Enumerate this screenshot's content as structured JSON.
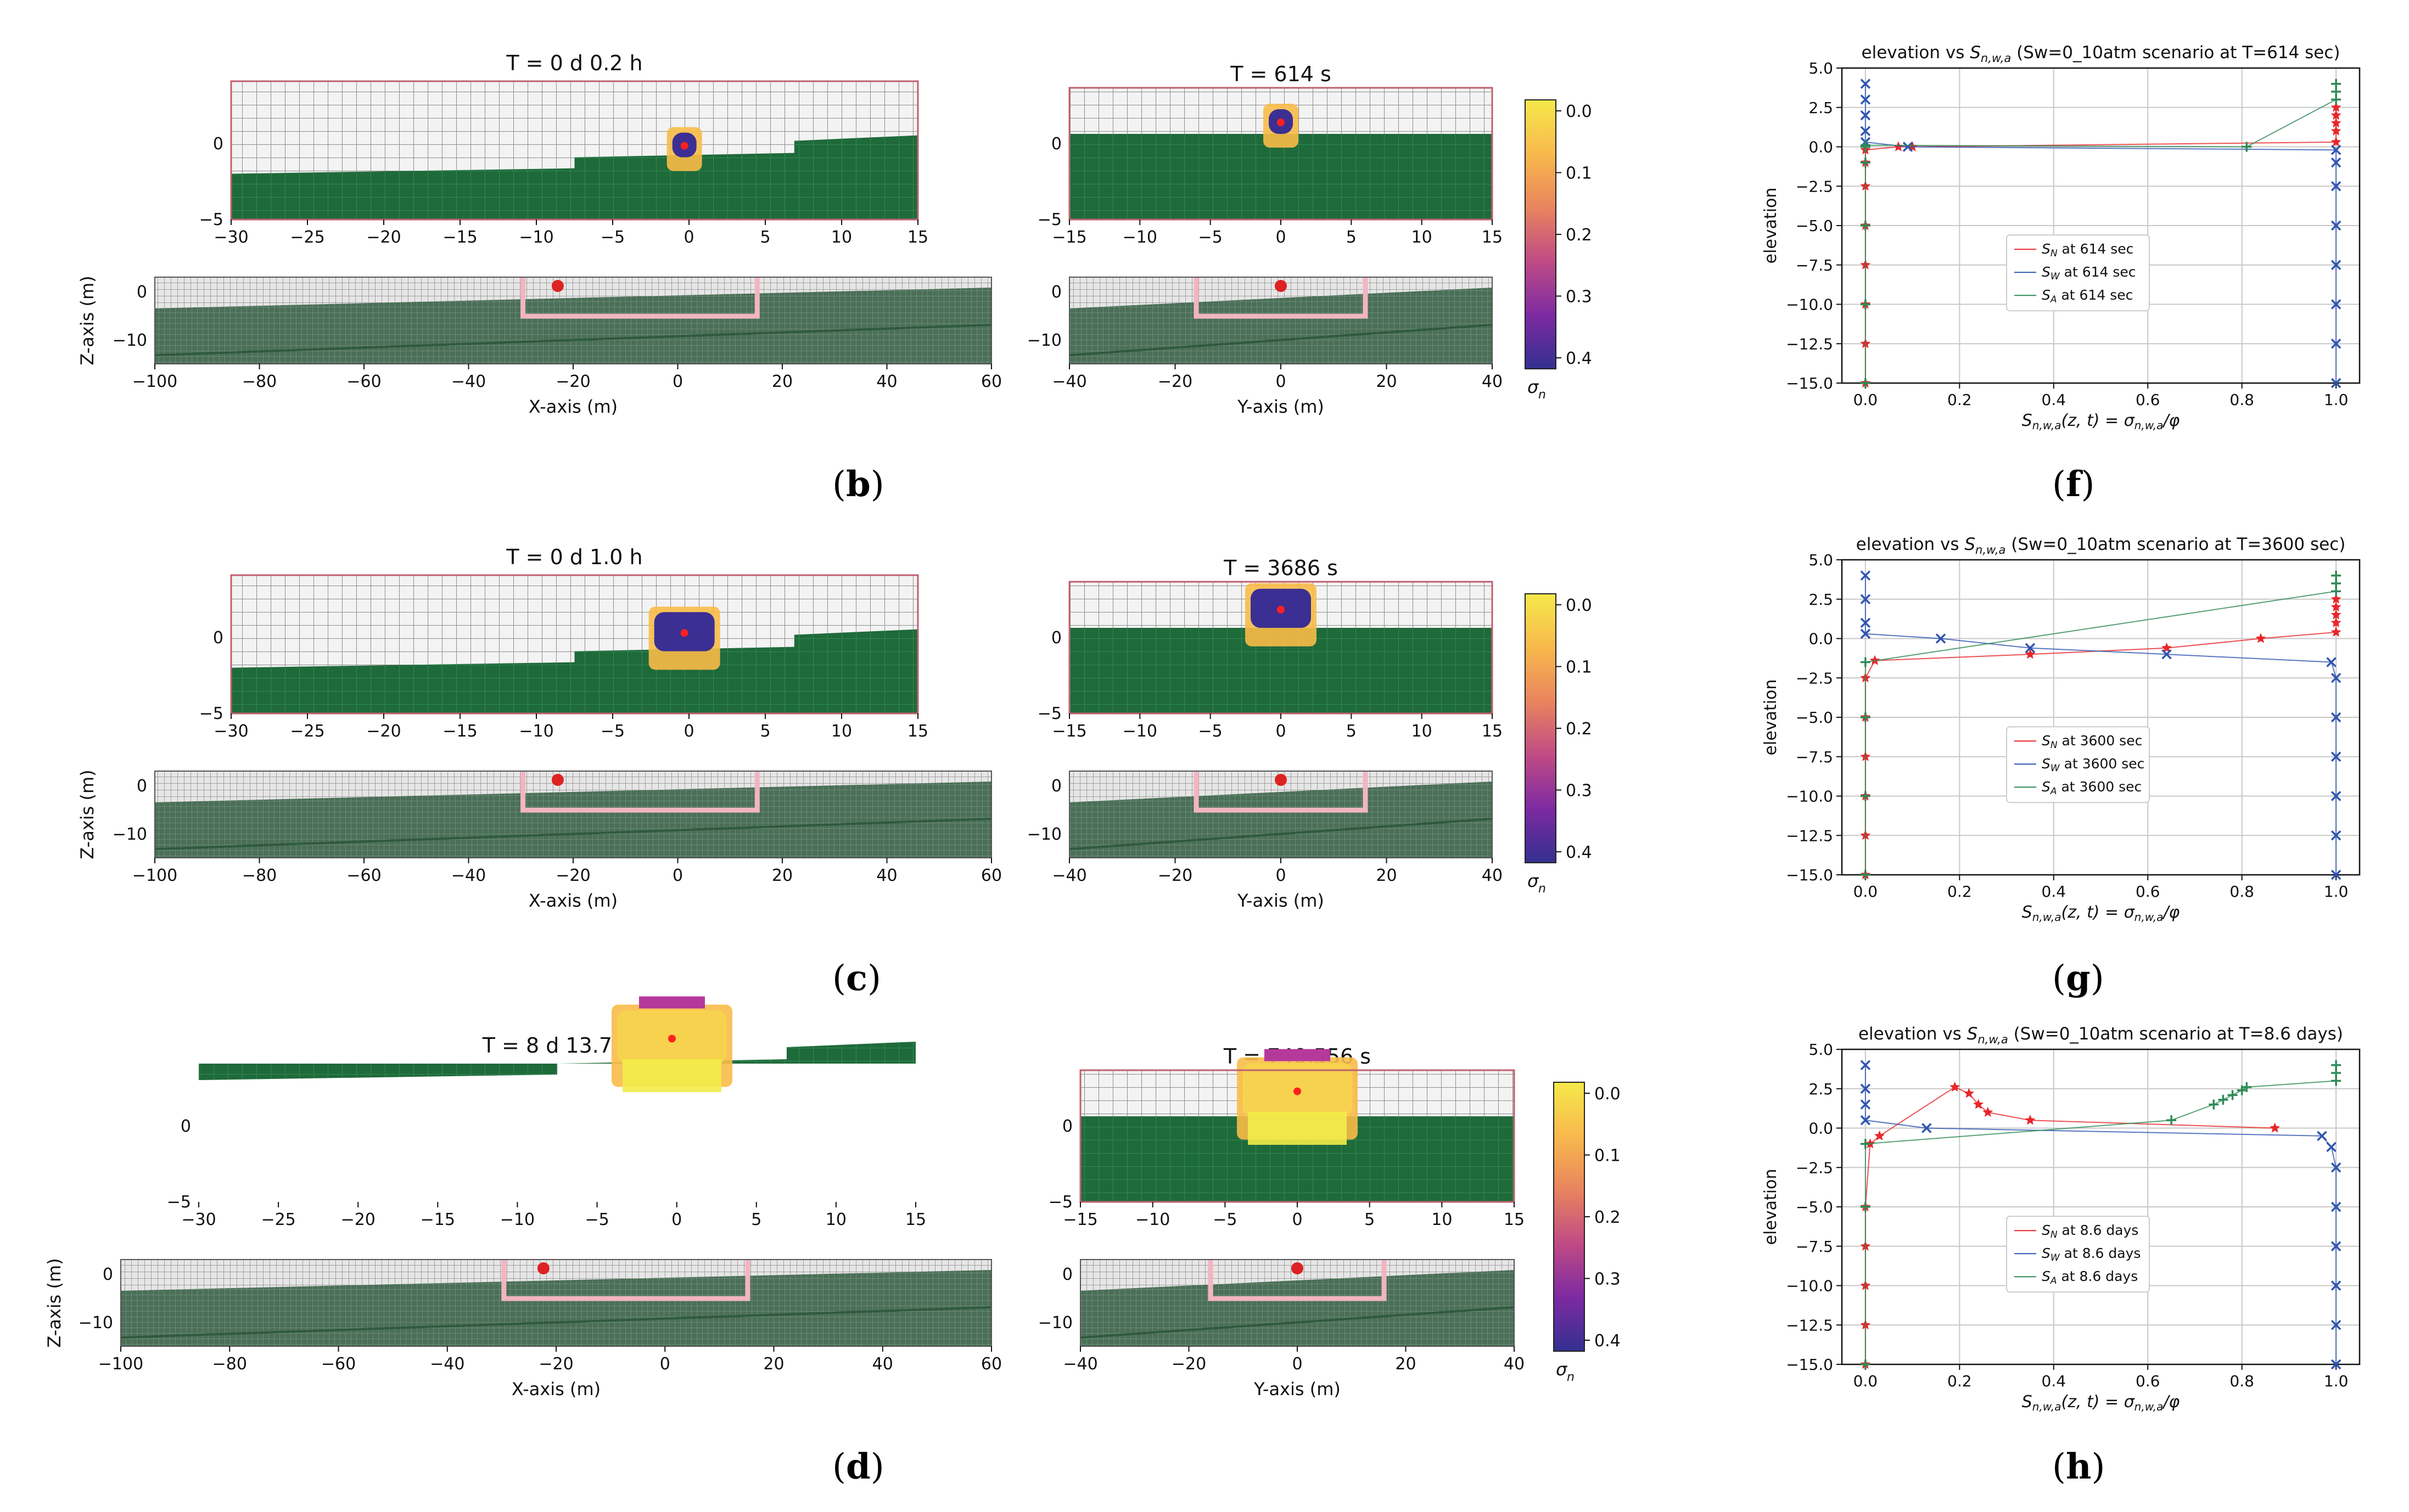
{
  "colorbar": {
    "ticks": [
      "0.0",
      "0.1",
      "0.2",
      "0.3",
      "0.4"
    ],
    "label": "σ",
    "label_sub": "n"
  },
  "axis_labels": {
    "x": "X-axis (m)",
    "y": "Y-axis (m)",
    "z": "Z-axis (m)"
  },
  "rows": [
    {
      "caption": "b",
      "xz_title": "T = 0 d  0.2 h",
      "yz_title": "T = 614 s"
    },
    {
      "caption": "c",
      "xz_title": "T = 0 d  1.0 h",
      "yz_title": "T = 3686 s"
    },
    {
      "caption": "d",
      "xz_title": "T = 8 d 13.7 h",
      "yz_title": "T = 740,556 s"
    }
  ],
  "ticks": {
    "top_x": [
      "−30",
      "−25",
      "−20",
      "−15",
      "−10",
      "−5",
      "0",
      "5",
      "10",
      "15"
    ],
    "top_y": [
      "−15",
      "−10",
      "−5",
      "0",
      "5",
      "10",
      "15"
    ],
    "top_z": [
      "0",
      "−5"
    ],
    "bottom_x": [
      "−100",
      "−80",
      "−60",
      "−40",
      "−20",
      "0",
      "20",
      "40",
      "60"
    ],
    "bottom_y": [
      "−40",
      "−20",
      "0",
      "20",
      "40"
    ],
    "bottom_z": [
      "0",
      "−10"
    ]
  },
  "chart_data": [
    {
      "type": "scatter",
      "caption": "f",
      "title": "elevation vs S_{n,w,a} (Sw=0_10atm scenario at T=614 sec)",
      "title_parts": [
        "elevation vs ",
        "S",
        "n,w,a",
        " (Sw=0_10atm scenario at T=614 sec)"
      ],
      "xlabel": "S_{n,w,a}(z,t) = σ_{n,w,a}/φ",
      "ylabel": "elevation",
      "xlim": [
        -0.05,
        1.05
      ],
      "ylim": [
        -15.0,
        5.0
      ],
      "xticks": [
        "0.0",
        "0.2",
        "0.4",
        "0.6",
        "0.8",
        "1.0"
      ],
      "yticks": [
        "5.0",
        "2.5",
        "0.0",
        "−2.5",
        "−5.0",
        "−7.5",
        "−10.0",
        "−12.5",
        "−15.0"
      ],
      "grid": true,
      "legend_position": "lower-center",
      "series": [
        {
          "name": "S_N at 614 sec",
          "legend_sub": "N",
          "legend_rest": " at 614 sec",
          "color": "#e8262a",
          "marker": "*",
          "x": [
            0.0,
            0.0,
            0.0,
            0.0,
            0.0,
            0.0,
            0.0,
            0.0,
            0.07,
            0.1,
            1.0,
            1.0,
            1.0,
            1.0,
            1.0
          ],
          "y": [
            -15.0,
            -12.5,
            -10.0,
            -7.5,
            -5.0,
            -2.5,
            -1.0,
            -0.2,
            0.0,
            0.0,
            0.3,
            1.0,
            1.5,
            2.0,
            2.5
          ]
        },
        {
          "name": "S_W at 614 sec",
          "legend_sub": "W",
          "legend_rest": " at 614 sec",
          "color": "#2f55b0",
          "marker": "x",
          "x": [
            1.0,
            1.0,
            1.0,
            1.0,
            1.0,
            1.0,
            1.0,
            1.0,
            0.09,
            0.0,
            0.0,
            0.0,
            0.0,
            0.0
          ],
          "y": [
            -15.0,
            -12.5,
            -10.0,
            -7.5,
            -5.0,
            -2.5,
            -1.0,
            -0.2,
            0.0,
            0.3,
            1.0,
            2.0,
            3.0,
            4.0
          ]
        },
        {
          "name": "S_A at 614 sec",
          "legend_sub": "A",
          "legend_rest": " at 614 sec",
          "color": "#2e8b57",
          "marker": "+",
          "x": [
            0.0,
            0.0,
            0.0,
            0.0,
            0.0,
            0.0,
            0.81,
            1.0,
            1.0,
            1.0
          ],
          "y": [
            -15.0,
            -10.0,
            -5.0,
            -1.0,
            0.0,
            0.1,
            0.0,
            3.0,
            3.5,
            4.0
          ]
        }
      ]
    },
    {
      "type": "scatter",
      "caption": "g",
      "title": "elevation vs S_{n,w,a} (Sw=0_10atm scenario at T=3600 sec)",
      "title_parts": [
        "elevation vs ",
        "S",
        "n,w,a",
        " (Sw=0_10atm scenario at T=3600 sec)"
      ],
      "xlabel": "S_{n,w,a}(z,t) = σ_{n,w,a}/φ",
      "ylabel": "elevation",
      "xlim": [
        -0.05,
        1.05
      ],
      "ylim": [
        -15.0,
        5.0
      ],
      "xticks": [
        "0.0",
        "0.2",
        "0.4",
        "0.6",
        "0.8",
        "1.0"
      ],
      "yticks": [
        "5.0",
        "2.5",
        "0.0",
        "−2.5",
        "−5.0",
        "−7.5",
        "−10.0",
        "−12.5",
        "−15.0"
      ],
      "grid": true,
      "legend_position": "lower-center",
      "series": [
        {
          "name": "S_N at 3600 sec",
          "legend_sub": "N",
          "legend_rest": " at 3600 sec",
          "color": "#e8262a",
          "marker": "*",
          "x": [
            0.0,
            0.0,
            0.0,
            0.0,
            0.0,
            0.0,
            0.02,
            0.35,
            0.64,
            0.84,
            1.0,
            1.0,
            1.0,
            1.0,
            1.0
          ],
          "y": [
            -15.0,
            -12.5,
            -10.0,
            -7.5,
            -5.0,
            -2.5,
            -1.4,
            -1.0,
            -0.6,
            0.0,
            0.4,
            1.0,
            1.5,
            2.0,
            2.5
          ]
        },
        {
          "name": "S_W at 3600 sec",
          "legend_sub": "W",
          "legend_rest": " at 3600 sec",
          "color": "#2f55b0",
          "marker": "x",
          "x": [
            1.0,
            1.0,
            1.0,
            1.0,
            1.0,
            1.0,
            0.99,
            0.64,
            0.35,
            0.16,
            0.0,
            0.0,
            0.0,
            0.0
          ],
          "y": [
            -15.0,
            -12.5,
            -10.0,
            -7.5,
            -5.0,
            -2.5,
            -1.5,
            -1.0,
            -0.6,
            0.0,
            0.3,
            1.0,
            2.5,
            4.0
          ]
        },
        {
          "name": "S_A at 3600 sec",
          "legend_sub": "A",
          "legend_rest": " at 3600 sec",
          "color": "#2e8b57",
          "marker": "+",
          "x": [
            0.0,
            0.0,
            0.0,
            0.0,
            1.0,
            1.0,
            1.0
          ],
          "y": [
            -15.0,
            -10.0,
            -5.0,
            -1.5,
            3.0,
            3.5,
            4.0
          ]
        }
      ]
    },
    {
      "type": "scatter",
      "caption": "h",
      "title": "elevation vs S_{n,w,a} (Sw=0_10atm scenario at T=8.6 days)",
      "title_parts": [
        "elevation vs ",
        "S",
        "n,w,a",
        " (Sw=0_10atm scenario at T=8.6 days)"
      ],
      "xlabel": "S_{n,w,a}(z,t) = σ_{n,w,a}/φ",
      "ylabel": "elevation",
      "xlim": [
        -0.05,
        1.05
      ],
      "ylim": [
        -15.0,
        5.0
      ],
      "xticks": [
        "0.0",
        "0.2",
        "0.4",
        "0.6",
        "0.8",
        "1.0"
      ],
      "yticks": [
        "5.0",
        "2.5",
        "0.0",
        "−2.5",
        "−5.0",
        "−7.5",
        "−10.0",
        "−12.5",
        "−15.0"
      ],
      "grid": true,
      "legend_position": "lower-center",
      "series": [
        {
          "name": "S_N at 8.6 days",
          "legend_sub": "N",
          "legend_rest": " at 8.6 days",
          "color": "#e8262a",
          "marker": "*",
          "x": [
            0.0,
            0.0,
            0.0,
            0.0,
            0.0,
            0.01,
            0.03,
            0.19,
            0.22,
            0.24,
            0.26,
            0.35,
            0.87
          ],
          "y": [
            -15.0,
            -12.5,
            -10.0,
            -7.5,
            -5.0,
            -1.0,
            -0.5,
            2.6,
            2.2,
            1.5,
            1.0,
            0.5,
            0.0
          ]
        },
        {
          "name": "S_W at 8.6 days",
          "legend_sub": "W",
          "legend_rest": " at 8.6 days",
          "color": "#2f55b0",
          "marker": "x",
          "x": [
            1.0,
            1.0,
            1.0,
            1.0,
            1.0,
            1.0,
            0.99,
            0.97,
            0.13,
            0.0,
            0.0,
            0.0,
            0.0
          ],
          "y": [
            -15.0,
            -12.5,
            -10.0,
            -7.5,
            -5.0,
            -2.5,
            -1.2,
            -0.5,
            0.0,
            0.5,
            1.5,
            2.5,
            4.0
          ]
        },
        {
          "name": "S_A at 8.6 days",
          "legend_sub": "A",
          "legend_rest": " at 8.6 days",
          "color": "#2e8b57",
          "marker": "+",
          "x": [
            0.0,
            0.0,
            0.0,
            0.65,
            0.74,
            0.76,
            0.78,
            0.8,
            0.81,
            1.0,
            1.0,
            1.0
          ],
          "y": [
            -15.0,
            -5.0,
            -1.0,
            0.5,
            1.5,
            1.8,
            2.1,
            2.4,
            2.6,
            3.0,
            3.5,
            4.0
          ]
        }
      ]
    }
  ]
}
